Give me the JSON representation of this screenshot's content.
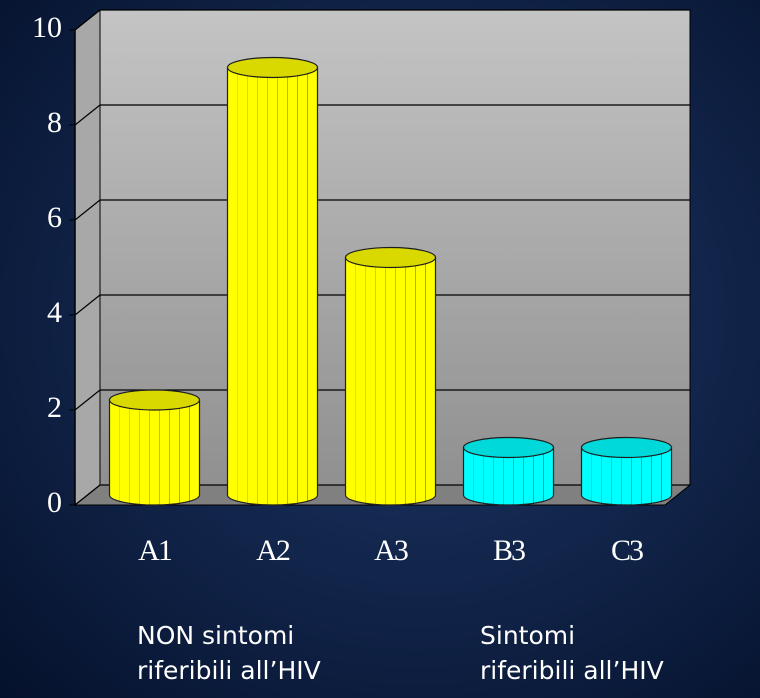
{
  "chart_data": {
    "type": "bar",
    "categories": [
      "A1",
      "A2",
      "A3",
      "B3",
      "C3"
    ],
    "values": [
      2,
      9,
      5,
      1,
      1
    ],
    "colors": [
      "#ffff00",
      "#ffff00",
      "#ffff00",
      "#00ffff",
      "#00ffff"
    ],
    "ylim": [
      0,
      10
    ],
    "yticks": [
      0,
      2,
      4,
      6,
      8,
      10
    ],
    "grid": true,
    "annotations": [
      {
        "lines": [
          "NON sintomi",
          "riferibili  all’HIV"
        ]
      },
      {
        "lines": [
          "Sintomi",
          "riferibili all’HIV"
        ]
      }
    ]
  }
}
